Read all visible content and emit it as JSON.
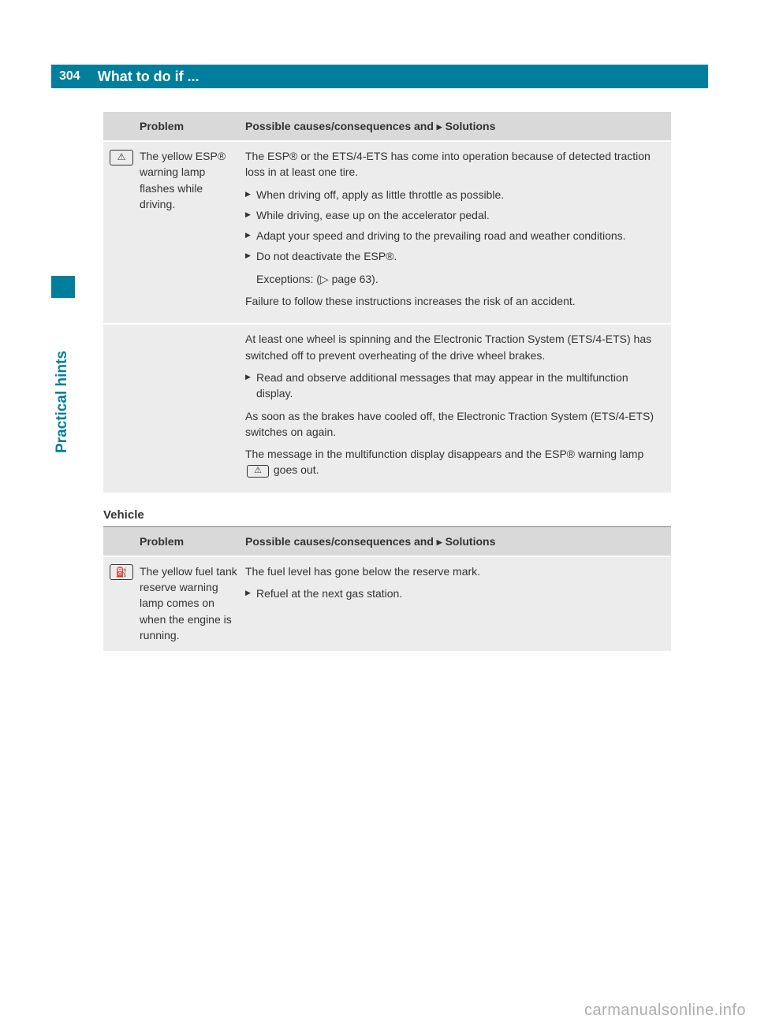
{
  "page": {
    "number": "304",
    "header_title": "What to do if ...",
    "sidebar_label": "Practical hints",
    "watermark": "carmanualsonline.info"
  },
  "table1": {
    "header_problem": "Problem",
    "header_solution_prefix": "Possible causes/consequences and ",
    "header_solution_suffix": " Solutions",
    "row1": {
      "icon_glyph": "⚠",
      "problem": "The yellow ESP® warning lamp flashes while driving.",
      "sol_intro": "The ESP® or the ETS/4-ETS has come into operation because of detected traction loss in at least one tire.",
      "bullets": [
        "When driving off, apply as little throttle as possible.",
        "While driving, ease up on the accelerator pedal.",
        "Adapt your speed and driving to the prevailing road and weather conditions.",
        "Do not deactivate the ESP®."
      ],
      "exceptions": "Exceptions: (▷ page 63).",
      "sol_outro": "Failure to follow these instructions increases the risk of an accident."
    },
    "row2": {
      "p1": "At least one wheel is spinning and the Electronic Traction System (ETS/4-ETS) has switched off to prevent overheating of the drive wheel brakes.",
      "bullets": [
        "Read and observe additional messages that may appear in the multifunction display."
      ],
      "p2": "As soon as the brakes have cooled off, the Electronic Traction System (ETS/4-ETS) switches on again.",
      "p3_pre": "The message in the multifunction display disappears and the ESP® warning lamp ",
      "p3_icon": "⚠",
      "p3_post": " goes out."
    }
  },
  "section2": {
    "heading": "Vehicle"
  },
  "table2": {
    "header_problem": "Problem",
    "header_solution_prefix": "Possible causes/consequences and ",
    "header_solution_suffix": " Solutions",
    "row1": {
      "icon_glyph": "⛽",
      "problem": "The yellow fuel tank reserve warning lamp comes on when the engine is running.",
      "sol_intro": "The fuel level has gone below the reserve mark.",
      "bullets": [
        "Refuel at the next gas station."
      ]
    }
  },
  "colors": {
    "teal": "#007e9b",
    "row_bg": "#ececec",
    "header_bg": "#d9d9d9",
    "text": "#333333"
  }
}
